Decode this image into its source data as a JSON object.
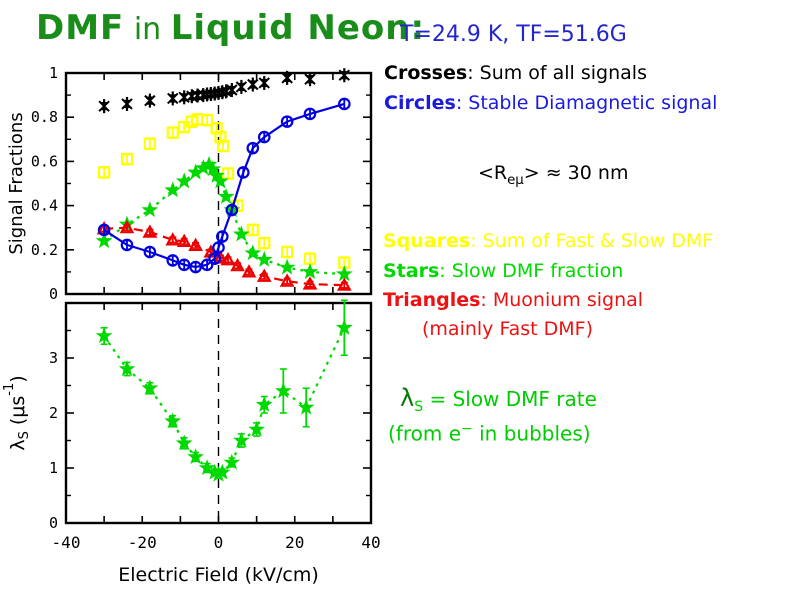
{
  "title": {
    "part1": "DMF",
    "part2": " in ",
    "part3": "Liquid Neon:",
    "color": "#1a8c1a"
  },
  "header": {
    "conditions": "T=24.9 K, TF=51.6G",
    "color": "#2525cc"
  },
  "legend": {
    "crosses": {
      "keyword": "Crosses",
      "rest": ": Sum of all signals",
      "color": "#000000"
    },
    "circles": {
      "keyword": "Circles",
      "rest": ": Stable Diamagnetic signal",
      "color": "#1b1be0"
    },
    "radius": {
      "pre": "<R",
      "sub": "eμ",
      "post": "> ≈ 30 nm"
    },
    "squares": {
      "keyword": "Squares",
      "rest": ": Sum of Fast & Slow DMF",
      "color": "#ffff00"
    },
    "stars": {
      "keyword": "Stars",
      "rest": ": Slow DMF fraction",
      "color": "#00d900"
    },
    "triangles": {
      "keyword": "Triangles",
      "rest": ": Muonium signal",
      "color": "#ee1111"
    },
    "mainly": "(mainly Fast DMF)",
    "lambda": {
      "sym": "λ",
      "sub": "S",
      "rest": " = Slow DMF rate"
    },
    "bubbles": {
      "pre": "(from e",
      "sup": "−",
      "post": " in bubbles)"
    }
  },
  "chart_data": [
    {
      "name": "signal-fractions-plot",
      "type": "scatter",
      "title": "",
      "xlabel": "",
      "ylabel": "Signal Fractions",
      "xlim": [
        -40,
        40
      ],
      "ylim": [
        0,
        1
      ],
      "xticks_major": [
        -40,
        -20,
        0,
        20,
        40
      ],
      "xticks_minor": [
        -30,
        -10,
        10,
        30
      ],
      "xtick_labels": [],
      "yticks_major": [
        0,
        0.2,
        0.4,
        0.6,
        0.8,
        1
      ],
      "ytick_labels": [
        "0",
        "0.2",
        "0.4",
        "0.6",
        "0.8",
        "1"
      ],
      "yticks_minor": [
        0.1,
        0.3,
        0.5,
        0.7,
        0.9
      ],
      "grid": false,
      "vline_x": 0,
      "series": [
        {
          "name": "squares-sum-fast-slow-dmf",
          "marker": "square",
          "color": "#ffff00",
          "line": "none",
          "err": 0.025,
          "points": [
            [
              -30,
              0.55
            ],
            [
              -24,
              0.61
            ],
            [
              -18,
              0.68
            ],
            [
              -12,
              0.73
            ],
            [
              -9,
              0.755
            ],
            [
              -7,
              0.78
            ],
            [
              -5.5,
              0.79
            ],
            [
              -3,
              0.787
            ],
            [
              -0.5,
              0.75
            ],
            [
              0.5,
              0.71
            ],
            [
              1.2,
              0.67
            ],
            [
              2.5,
              0.545
            ],
            [
              5,
              0.4
            ],
            [
              9,
              0.29
            ],
            [
              12,
              0.23
            ],
            [
              18,
              0.19
            ],
            [
              24,
              0.16
            ],
            [
              33,
              0.142
            ]
          ]
        },
        {
          "name": "stars-slow-dmf-fraction",
          "marker": "star",
          "color": "#00d900",
          "line": "dashdot",
          "err": 0,
          "points": [
            [
              -30,
              0.24
            ],
            [
              -24,
              0.315
            ],
            [
              -18,
              0.38
            ],
            [
              -12,
              0.47
            ],
            [
              -9,
              0.51
            ],
            [
              -6,
              0.55
            ],
            [
              -4,
              0.57
            ],
            [
              -2.5,
              0.585
            ],
            [
              -1.5,
              0.565
            ],
            [
              -0.5,
              0.535
            ],
            [
              0.5,
              0.51
            ],
            [
              2,
              0.44
            ],
            [
              3.5,
              0.38
            ],
            [
              6,
              0.27
            ],
            [
              9,
              0.185
            ],
            [
              12,
              0.155
            ],
            [
              18,
              0.12
            ],
            [
              24,
              0.1
            ],
            [
              33,
              0.09
            ]
          ]
        },
        {
          "name": "triangles-muonium-signal",
          "marker": "triangle",
          "color": "#ee0000",
          "line": "dashed",
          "err": 0.012,
          "points": [
            [
              -30,
              0.295
            ],
            [
              -24,
              0.3
            ],
            [
              -18,
              0.28
            ],
            [
              -12,
              0.245
            ],
            [
              -9,
              0.238
            ],
            [
              -6,
              0.22
            ],
            [
              -2,
              0.19
            ],
            [
              0.5,
              0.163
            ],
            [
              2.5,
              0.155
            ],
            [
              5,
              0.128
            ],
            [
              8,
              0.1
            ],
            [
              12,
              0.08
            ],
            [
              18,
              0.058
            ],
            [
              24,
              0.045
            ],
            [
              33,
              0.04
            ]
          ]
        },
        {
          "name": "circles-stable-diamagnetic",
          "marker": "circle",
          "color": "#0000e0",
          "line": "solid",
          "err": 0.02,
          "points": [
            [
              -30,
              0.29
            ],
            [
              -24,
              0.222
            ],
            [
              -18,
              0.19
            ],
            [
              -12,
              0.152
            ],
            [
              -9,
              0.132
            ],
            [
              -6,
              0.122
            ],
            [
              -3,
              0.132
            ],
            [
              -1,
              0.16
            ],
            [
              0,
              0.21
            ],
            [
              1,
              0.26
            ],
            [
              3.5,
              0.38
            ],
            [
              6.5,
              0.55
            ],
            [
              9,
              0.66
            ],
            [
              12,
              0.71
            ],
            [
              18,
              0.78
            ],
            [
              24,
              0.815
            ],
            [
              33,
              0.86
            ]
          ]
        },
        {
          "name": "crosses-sum-of-all-signals",
          "marker": "asterisk",
          "color": "#000000",
          "line": "none",
          "err": 0.015,
          "points": [
            [
              -30,
              0.85
            ],
            [
              -24,
              0.86
            ],
            [
              -18,
              0.875
            ],
            [
              -12,
              0.885
            ],
            [
              -9,
              0.89
            ],
            [
              -7,
              0.895
            ],
            [
              -5.5,
              0.898
            ],
            [
              -4,
              0.9
            ],
            [
              -3,
              0.903
            ],
            [
              -2,
              0.905
            ],
            [
              -1,
              0.907
            ],
            [
              0,
              0.91
            ],
            [
              1,
              0.913
            ],
            [
              2,
              0.917
            ],
            [
              3.5,
              0.923
            ],
            [
              6,
              0.937
            ],
            [
              9,
              0.948
            ],
            [
              12,
              0.955
            ],
            [
              18,
              0.978
            ],
            [
              24,
              0.972
            ],
            [
              33,
              0.99
            ]
          ]
        }
      ]
    },
    {
      "name": "slow-dmf-rate-plot",
      "type": "scatter",
      "title": "",
      "xlabel": "Electric Field (kV/cm)",
      "ylabel": "λS (μs-1)",
      "ylabel_parts": [
        {
          "t": "λ"
        },
        {
          "t": "S",
          "pos": "sub"
        },
        {
          "t": " (μs"
        },
        {
          "t": "-1",
          "pos": "sup"
        },
        {
          "t": ")"
        }
      ],
      "xlim": [
        -40,
        40
      ],
      "ylim": [
        0,
        4
      ],
      "xticks_major": [
        -40,
        -20,
        0,
        20,
        40
      ],
      "xticks_minor": [
        -30,
        -10,
        10,
        30
      ],
      "xtick_labels": [
        "-40",
        "-20",
        "0",
        "20",
        "40"
      ],
      "yticks_major": [
        0,
        1,
        2,
        3
      ],
      "ytick_labels": [
        "0",
        "1",
        "2",
        "3"
      ],
      "yticks_minor": [
        0.5,
        1.5,
        2.5,
        3.5
      ],
      "grid": false,
      "vline_x": 0,
      "series": [
        {
          "name": "stars-slow-dmf-rate",
          "marker": "star",
          "color": "#00d900",
          "line": "dashdot",
          "err": 0,
          "points": [
            [
              -30,
              3.4,
              0.15
            ],
            [
              -24,
              2.8,
              0.12
            ],
            [
              -18,
              2.45,
              0.1
            ],
            [
              -12,
              1.85,
              0.1
            ],
            [
              -9,
              1.45,
              0.1
            ],
            [
              -6,
              1.2,
              0.08
            ],
            [
              -3,
              1.0,
              0.08
            ],
            [
              -1,
              0.92,
              0.06
            ],
            [
              0,
              0.88,
              0.06
            ],
            [
              1,
              0.92,
              0.06
            ],
            [
              3.5,
              1.1,
              0.08
            ],
            [
              6,
              1.5,
              0.12
            ],
            [
              10,
              1.7,
              0.12
            ],
            [
              12,
              2.15,
              0.15
            ],
            [
              17,
              2.4,
              0.4
            ],
            [
              23,
              2.1,
              0.35
            ],
            [
              33,
              3.55,
              0.5
            ]
          ]
        }
      ]
    }
  ]
}
